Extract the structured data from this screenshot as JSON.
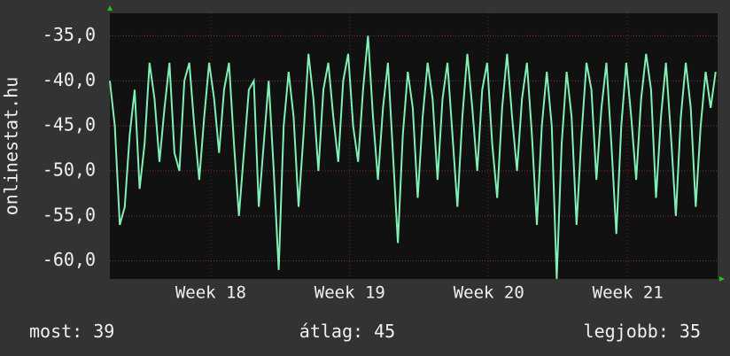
{
  "chart_data": {
    "type": "line",
    "ylabel": "onlinestat.hu",
    "color": "#80f0b4",
    "x": [
      0,
      0.25,
      0.5,
      0.75,
      1,
      1.25,
      1.5,
      1.75,
      2,
      2.25,
      2.5,
      2.75,
      3,
      3.25,
      3.5,
      3.75,
      4,
      4.25,
      4.5,
      4.75,
      5,
      5.25,
      5.5,
      5.75,
      6,
      6.25,
      6.5,
      6.75,
      7,
      7.25,
      7.5,
      7.75,
      8,
      8.25,
      8.5,
      8.75,
      9,
      9.25,
      9.5,
      9.75,
      10,
      10.25,
      10.5,
      10.75,
      11,
      11.25,
      11.5,
      11.75,
      12,
      12.25,
      12.5,
      12.75,
      13,
      13.25,
      13.5,
      13.75,
      14,
      14.25,
      14.5,
      14.75,
      15,
      15.25,
      15.5,
      15.75,
      16,
      16.25,
      16.5,
      16.75,
      17,
      17.25,
      17.5,
      17.75,
      18,
      18.25,
      18.5,
      18.75,
      19,
      19.25,
      19.5,
      19.75,
      20,
      20.25,
      20.5,
      20.75,
      21,
      21.25,
      21.5,
      21.75,
      22,
      22.25,
      22.5,
      22.75,
      23,
      23.25,
      23.5,
      23.75,
      24,
      24.25,
      24.5,
      24.75,
      25,
      25.25,
      25.5,
      25.75,
      26,
      26.25,
      26.5,
      26.75,
      27,
      27.25,
      27.5,
      27.75,
      28,
      28.25,
      28.5,
      28.75,
      29,
      29.25,
      29.5,
      29.75,
      30,
      30.25,
      30.5
    ],
    "values": [
      -40,
      -45,
      -56,
      -54,
      -46,
      -41,
      -52,
      -47,
      -38,
      -42,
      -49,
      -43,
      -38,
      -48,
      -50,
      -40,
      -38,
      -45,
      -51,
      -44,
      -38,
      -42,
      -48,
      -41,
      -38,
      -47,
      -55,
      -48,
      -41,
      -40,
      -54,
      -47,
      -40,
      -50,
      -61,
      -45,
      -39,
      -44,
      -54,
      -46,
      -37,
      -42,
      -50,
      -41,
      -38,
      -44,
      -49,
      -40,
      -37,
      -45,
      -49,
      -41,
      -35,
      -44,
      -51,
      -43,
      -38,
      -48,
      -58,
      -46,
      -39,
      -43,
      -53,
      -44,
      -38,
      -42,
      -51,
      -42,
      -38,
      -46,
      -54,
      -44,
      -37,
      -43,
      -50,
      -41,
      -38,
      -47,
      -53,
      -43,
      -37,
      -44,
      -50,
      -42,
      -38,
      -46,
      -56,
      -45,
      -39,
      -45,
      -62,
      -47,
      -39,
      -44,
      -56,
      -46,
      -38,
      -41,
      -51,
      -43,
      -38,
      -47,
      -57,
      -45,
      -38,
      -44,
      -51,
      -42,
      -37,
      -41,
      -53,
      -44,
      -38,
      -46,
      -55,
      -44,
      -38,
      -43,
      -54,
      -45,
      -39,
      -43,
      -39
    ],
    "xlim": [
      0,
      30.6
    ],
    "xticks": [
      {
        "value": 5.08,
        "label": "Week 18"
      },
      {
        "value": 12.08,
        "label": "Week 19"
      },
      {
        "value": 19.08,
        "label": "Week 20"
      },
      {
        "value": 26.08,
        "label": "Week 21"
      }
    ],
    "ylim": [
      -62,
      -32.5
    ],
    "yticks": [
      {
        "value": -60,
        "label": "-60,0"
      },
      {
        "value": -55,
        "label": "-55,0"
      },
      {
        "value": -50,
        "label": "-50,0"
      },
      {
        "value": -45,
        "label": "-45,0"
      },
      {
        "value": -40,
        "label": "-40,0"
      },
      {
        "value": -35,
        "label": "-35,0"
      }
    ],
    "grid": true,
    "footer": [
      {
        "label": "most:",
        "value": 39
      },
      {
        "label": "átlag:",
        "value": 45
      },
      {
        "label": "legjobb:",
        "value": 35
      }
    ]
  }
}
